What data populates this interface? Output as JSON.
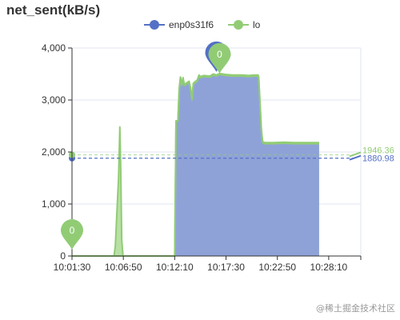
{
  "chart_data": {
    "type": "area",
    "title": "net_sent(kB/s)",
    "ylim": [
      0,
      4000
    ],
    "y_ticks": [
      0,
      1000,
      2000,
      3000,
      4000
    ],
    "y_tick_labels": [
      "0",
      "1,000",
      "2,000",
      "3,000",
      "4,000"
    ],
    "x_range_seconds": [
      0,
      1800
    ],
    "x_tick_labels": [
      "10:01:30",
      "10:06:50",
      "10:12:10",
      "10:17:30",
      "10:22:50",
      "10:28:10"
    ],
    "x_ticks_seconds": [
      0,
      320,
      640,
      960,
      1280,
      1600
    ],
    "legend_position": "top-center",
    "grid": true,
    "series": [
      {
        "name": "enp0s31f6",
        "color": "#5470c6",
        "fill": "#8fa2d8",
        "average_label": "1880.98",
        "average_value": 1880.98,
        "points": [
          [
            0,
            0
          ],
          [
            240,
            0
          ],
          [
            255,
            0
          ],
          [
            260,
            0
          ],
          [
            640,
            0
          ],
          [
            648,
            2580
          ],
          [
            660,
            2600
          ],
          [
            668,
            3200
          ],
          [
            676,
            3440
          ],
          [
            684,
            3280
          ],
          [
            692,
            3410
          ],
          [
            700,
            3280
          ],
          [
            710,
            3300
          ],
          [
            720,
            3320
          ],
          [
            730,
            3340
          ],
          [
            740,
            3200
          ],
          [
            748,
            3000
          ],
          [
            756,
            3300
          ],
          [
            770,
            3340
          ],
          [
            780,
            3360
          ],
          [
            792,
            3460
          ],
          [
            800,
            3430
          ],
          [
            820,
            3450
          ],
          [
            860,
            3440
          ],
          [
            880,
            3480
          ],
          [
            900,
            3460
          ],
          [
            920,
            3490
          ],
          [
            960,
            3470
          ],
          [
            1000,
            3460
          ],
          [
            1060,
            3460
          ],
          [
            1100,
            3450
          ],
          [
            1140,
            3460
          ],
          [
            1160,
            3460
          ],
          [
            1164,
            3420
          ],
          [
            1180,
            2420
          ],
          [
            1188,
            2180
          ],
          [
            1200,
            2160
          ],
          [
            1260,
            2160
          ],
          [
            1320,
            2170
          ],
          [
            1380,
            2160
          ],
          [
            1440,
            2160
          ],
          [
            1530,
            2160
          ],
          [
            1540,
            2160
          ]
        ]
      },
      {
        "name": "lo",
        "color": "#91cc75",
        "fill": "#b8e0a5",
        "average_label": "1946.36",
        "average_value": 1946.36,
        "points": [
          [
            0,
            0
          ],
          [
            240,
            0
          ],
          [
            262,
            0
          ],
          [
            270,
            200
          ],
          [
            282,
            1000
          ],
          [
            290,
            1500
          ],
          [
            298,
            2480
          ],
          [
            303,
            1800
          ],
          [
            310,
            300
          ],
          [
            318,
            0
          ],
          [
            320,
            0
          ],
          [
            640,
            0
          ],
          [
            648,
            2600
          ],
          [
            660,
            2600
          ],
          [
            668,
            3220
          ],
          [
            676,
            3440
          ],
          [
            684,
            3300
          ],
          [
            692,
            3430
          ],
          [
            700,
            3300
          ],
          [
            710,
            3320
          ],
          [
            720,
            3340
          ],
          [
            730,
            3360
          ],
          [
            740,
            3220
          ],
          [
            748,
            3020
          ],
          [
            756,
            3320
          ],
          [
            770,
            3360
          ],
          [
            780,
            3380
          ],
          [
            792,
            3480
          ],
          [
            800,
            3450
          ],
          [
            820,
            3470
          ],
          [
            860,
            3460
          ],
          [
            880,
            3500
          ],
          [
            900,
            3480
          ],
          [
            920,
            3510
          ],
          [
            960,
            3490
          ],
          [
            1000,
            3480
          ],
          [
            1060,
            3480
          ],
          [
            1100,
            3470
          ],
          [
            1140,
            3480
          ],
          [
            1160,
            3480
          ],
          [
            1164,
            3440
          ],
          [
            1180,
            2440
          ],
          [
            1188,
            2200
          ],
          [
            1200,
            2180
          ],
          [
            1260,
            2180
          ],
          [
            1320,
            2190
          ],
          [
            1380,
            2180
          ],
          [
            1440,
            2180
          ],
          [
            1530,
            2180
          ],
          [
            1540,
            2180
          ]
        ]
      }
    ],
    "markers": {
      "max": {
        "label": "0",
        "x": 920,
        "y": 3510
      },
      "min": {
        "label": "0",
        "x": 0,
        "y": 0
      }
    }
  },
  "watermark": "@稀土掘金技术社区"
}
